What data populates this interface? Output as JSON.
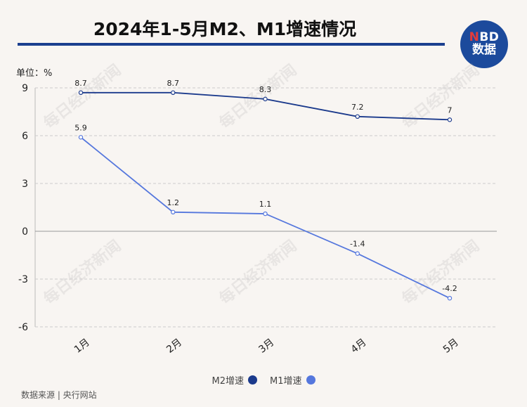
{
  "title": "2024年1-5月M2、M1增速情况",
  "logo": {
    "line1_a": "N",
    "line1_b": "BD",
    "line2": "数据"
  },
  "unit_label": "单位：%",
  "source": "数据来源 | 央行网站",
  "watermark": "每日经济新闻",
  "colors": {
    "m2": "#1b3a8c",
    "m1": "#5577dd",
    "title_bar": "#1b3f8f",
    "grid": "#cccccc"
  },
  "chart_data": {
    "type": "line",
    "categories": [
      "1月",
      "2月",
      "3月",
      "4月",
      "5月"
    ],
    "series": [
      {
        "name": "M2增速",
        "values": [
          8.7,
          8.7,
          8.3,
          7.2,
          7
        ],
        "labels": [
          "8.7",
          "8.7",
          "8.3",
          "7.2",
          "7"
        ]
      },
      {
        "name": "M1增速",
        "values": [
          5.9,
          1.2,
          1.1,
          -1.4,
          -4.2
        ],
        "labels": [
          "5.9",
          "1.2",
          "1.1",
          "-1.4",
          "-4.2"
        ]
      }
    ],
    "ylim": [
      -6,
      9
    ],
    "yticks": [
      "9",
      "6",
      "3",
      "0",
      "-3",
      "-6"
    ],
    "grid": true,
    "legend_position": "bottom"
  }
}
